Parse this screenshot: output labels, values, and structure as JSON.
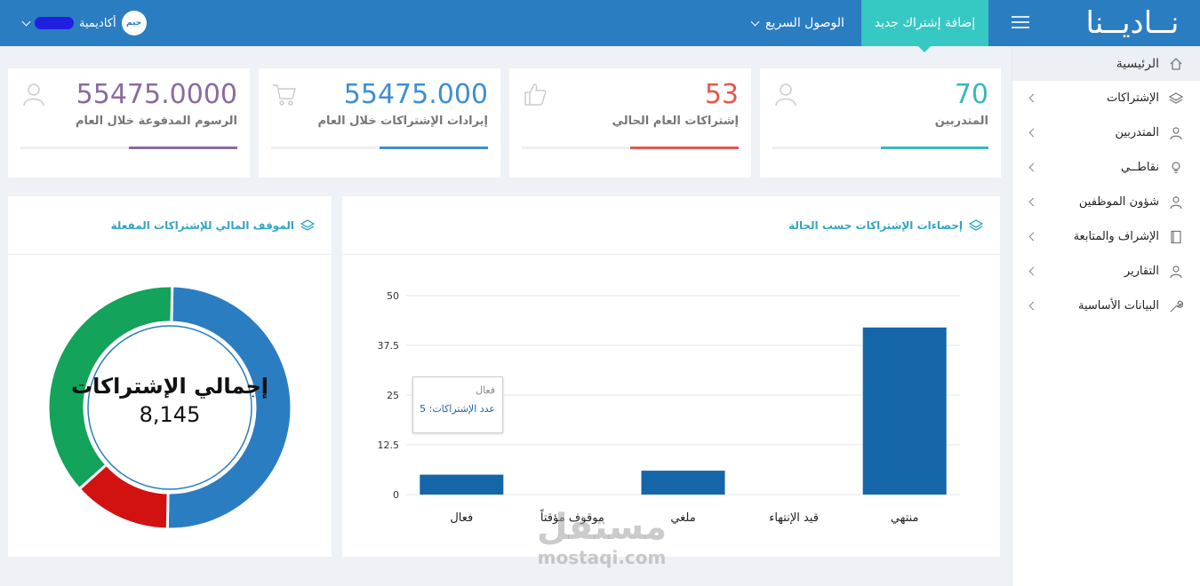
{
  "header": {
    "logo": "نــاديــنا",
    "add_subscription": "إضافة إشتراك جديد",
    "quick_access": "الوصول السريع",
    "user_name": "أكاديمية",
    "avatar_text": "جيم"
  },
  "sidebar": {
    "items": [
      {
        "label": "الرئيسية"
      },
      {
        "label": "الإشتراكات"
      },
      {
        "label": "المتدربين"
      },
      {
        "label": "نقاطــي"
      },
      {
        "label": "شؤون الموظفين"
      },
      {
        "label": "الإشراف والمتابعة"
      },
      {
        "label": "التقارير"
      },
      {
        "label": "البيانات الأساسية"
      }
    ]
  },
  "stats": [
    {
      "value": "70",
      "label": "المتدربين",
      "color": "#36b8c0",
      "progress": 0.5
    },
    {
      "value": "53",
      "label": "إشتراكات العام الحالي",
      "color": "#e4584b",
      "progress": 0.5
    },
    {
      "value": "55475.000",
      "label": "إيرادات الإشتراكات خلال العام",
      "color": "#3e8fd2",
      "progress": 0.5
    },
    {
      "value": "55475.0000",
      "label": "الرسوم المدفوعة خلال العام",
      "color": "#8a6b9e",
      "progress": 0.5
    }
  ],
  "bar_panel": {
    "title": "إحصاءات الإشتراكات حسب الحالة",
    "tooltip": {
      "title": "فعال",
      "line": "عدد الإشتراكات: 5"
    }
  },
  "donut_panel": {
    "title": "الموقف المالي للإشتراكات المفعلة",
    "center_title": "إجمالي الإشتراكات",
    "center_value": "8,145"
  },
  "chart_data": [
    {
      "type": "bar",
      "categories": [
        "منتهي",
        "قيد الإنتهاء",
        "ملغي",
        "موقوف مؤقتاً",
        "فعال"
      ],
      "values": [
        42,
        0,
        6,
        0,
        5
      ],
      "ylim": [
        0,
        50
      ],
      "yticks": [
        "0",
        "12.5",
        "25",
        "37.5",
        "50"
      ],
      "color": "#1565a9",
      "grid": true
    },
    {
      "type": "pie",
      "values": [
        50,
        13,
        37
      ],
      "colors": [
        "#2b7dc1",
        "#d21111",
        "#13a35b"
      ],
      "total": "8,145"
    }
  ],
  "watermark": {
    "line1": "مستقل",
    "line2": "mostaqi.com"
  }
}
